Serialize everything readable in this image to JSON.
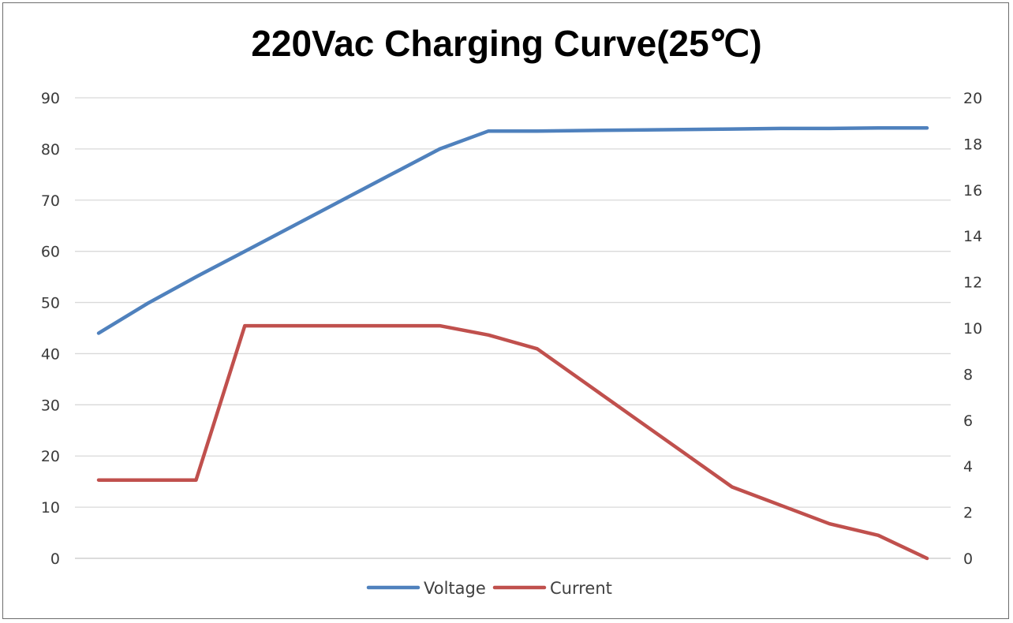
{
  "chart_data": {
    "type": "line",
    "title": "220Vac Charging Curve(25℃)",
    "xlabel": "",
    "ylabel": "",
    "y2label": "",
    "ylim": [
      0,
      90
    ],
    "y2lim": [
      0,
      20
    ],
    "left_ticks": [
      "0",
      "10",
      "20",
      "30",
      "40",
      "50",
      "60",
      "70",
      "80",
      "90"
    ],
    "right_ticks": [
      "0",
      "2",
      "4",
      "6",
      "8",
      "10",
      "12",
      "14",
      "16",
      "18",
      "20"
    ],
    "grid": true,
    "legend_position": "bottom",
    "x": [
      0,
      1,
      2,
      3,
      4,
      5,
      6,
      7,
      8,
      9,
      10,
      11,
      12,
      13,
      14,
      15,
      16,
      17
    ],
    "series": [
      {
        "name": "Voltage",
        "axis": "left",
        "color": "#4f81bd",
        "values": [
          44.0,
          49.8,
          55.0,
          60.0,
          65.0,
          70.0,
          75.0,
          80.0,
          83.5,
          83.5,
          83.6,
          83.7,
          83.8,
          83.9,
          84.0,
          84.0,
          84.1,
          84.1
        ]
      },
      {
        "name": "Current",
        "axis": "right",
        "color": "#c0504d",
        "values": [
          3.4,
          3.4,
          3.4,
          10.1,
          10.1,
          10.1,
          10.1,
          10.1,
          9.7,
          9.1,
          7.6,
          6.1,
          4.6,
          3.1,
          2.3,
          1.5,
          1.0,
          0.0
        ]
      }
    ]
  }
}
